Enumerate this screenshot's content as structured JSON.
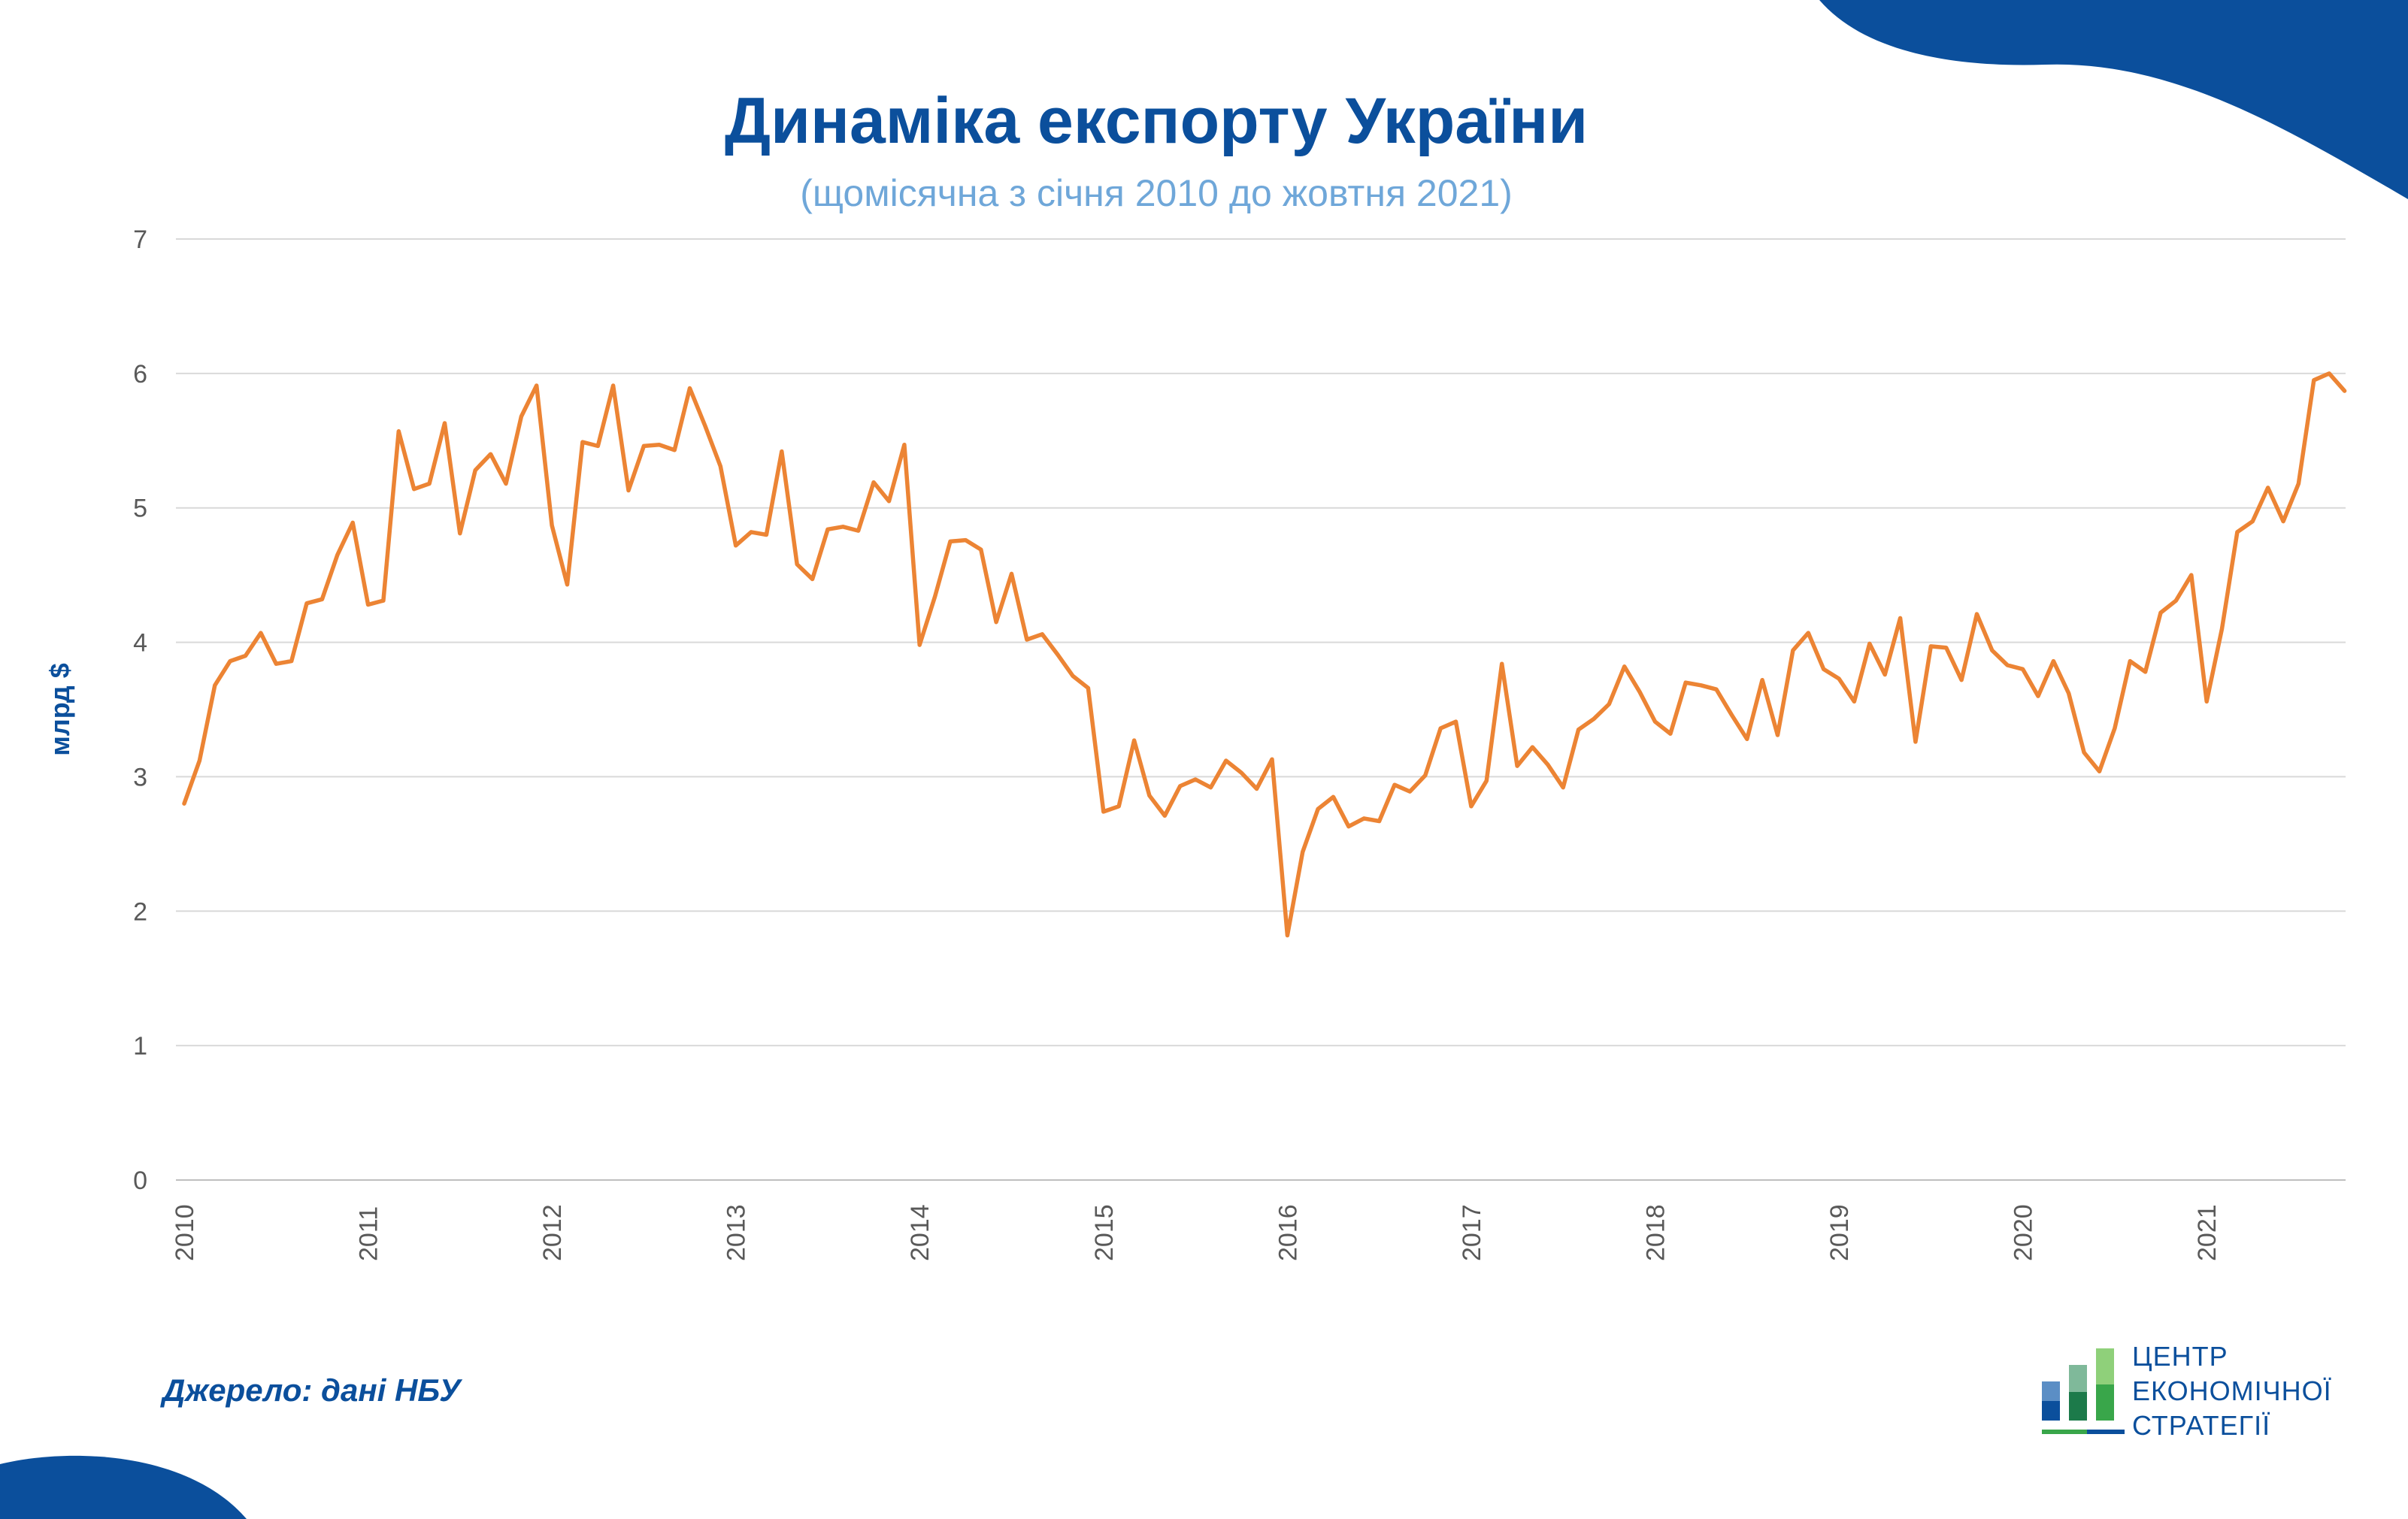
{
  "title": "Динаміка експорту України",
  "subtitle": "(щомісячна з січня 2010 до жовтня 2021)",
  "source": "Джерело: дані НБУ",
  "logo": {
    "line1": "ЦЕНТР",
    "line2": "ЕКОНОМІЧНОЇ",
    "line3": "СТРАТЕГІЇ",
    "icon": "bar-chart-logo-icon"
  },
  "colors": {
    "title": "#0b4f9c",
    "subtitle": "#6fa7d9",
    "line": "#ec8434",
    "blob": "#0b4f9c",
    "grid": "#d9d9d9"
  },
  "chart_data": {
    "type": "line",
    "title": "Динаміка експорту України",
    "subtitle": "(щомісячна з січня 2010 до жовтня 2021)",
    "ylabel": "млрд $",
    "xlabel": "",
    "ylim": [
      0,
      7
    ],
    "yticks": [
      "0",
      "1",
      "2",
      "3",
      "4",
      "5",
      "6",
      "7"
    ],
    "xticks": [
      "2010",
      "2011",
      "2012",
      "2013",
      "2014",
      "2015",
      "2016",
      "2017",
      "2018",
      "2019",
      "2020",
      "2021"
    ],
    "x_start": "2010-01",
    "x_end": "2021-10",
    "grid": true,
    "legend": false,
    "series": [
      {
        "values": [
          2.8,
          3.12,
          3.68,
          3.86,
          3.9,
          4.07,
          3.84,
          3.86,
          4.29,
          4.32,
          4.65,
          4.89,
          4.28,
          4.31,
          5.57,
          5.14,
          5.18,
          5.63,
          4.81,
          5.28,
          5.4,
          5.18,
          5.68,
          5.91,
          4.87,
          4.43,
          5.49,
          5.46,
          5.91,
          5.13,
          5.46,
          5.47,
          5.43,
          5.89,
          5.61,
          5.31,
          4.72,
          4.82,
          4.8,
          5.42,
          4.58,
          4.47,
          4.84,
          4.86,
          4.83,
          5.19,
          5.05,
          5.47,
          3.98,
          4.34,
          4.75,
          4.76,
          4.69,
          4.15,
          4.51,
          4.02,
          4.06,
          3.91,
          3.75,
          3.66,
          2.74,
          2.78,
          3.27,
          2.86,
          2.71,
          2.93,
          2.98,
          2.92,
          3.12,
          3.03,
          2.91,
          3.13,
          1.82,
          2.44,
          2.76,
          2.85,
          2.63,
          2.69,
          2.67,
          2.94,
          2.89,
          3.01,
          3.36,
          3.41,
          2.78,
          2.97,
          3.84,
          3.08,
          3.22,
          3.09,
          2.92,
          3.35,
          3.43,
          3.54,
          3.82,
          3.63,
          3.41,
          3.32,
          3.7,
          3.68,
          3.65,
          3.46,
          3.28,
          3.72,
          3.31,
          3.94,
          4.07,
          3.8,
          3.73,
          3.56,
          3.99,
          3.76,
          4.18,
          3.26,
          3.97,
          3.96,
          3.72,
          4.21,
          3.94,
          3.83,
          3.8,
          3.6,
          3.86,
          3.62,
          3.18,
          3.04,
          3.36,
          3.86,
          3.78,
          4.22,
          4.31,
          4.5,
          3.56,
          4.1,
          4.82,
          4.9,
          5.15,
          4.9,
          5.18,
          5.95,
          6.0,
          5.87
        ]
      }
    ]
  }
}
